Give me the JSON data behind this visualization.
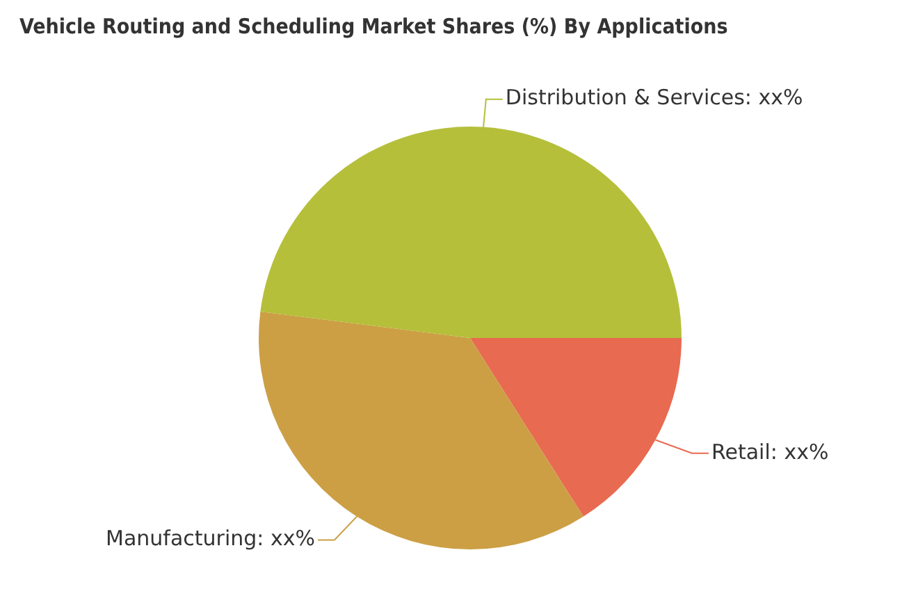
{
  "chart_data": {
    "type": "pie",
    "title": "Vehicle Routing and Scheduling Market Shares (%) By Applications",
    "categories": [
      "Retail",
      "Manufacturing",
      "Distribution & Services"
    ],
    "values": [
      16,
      36,
      48
    ],
    "colors": [
      "#e86a50",
      "#cc9f45",
      "#b5bf3a"
    ],
    "value_labels": [
      "xx%",
      "xx%",
      "xx%"
    ],
    "legend": false
  }
}
